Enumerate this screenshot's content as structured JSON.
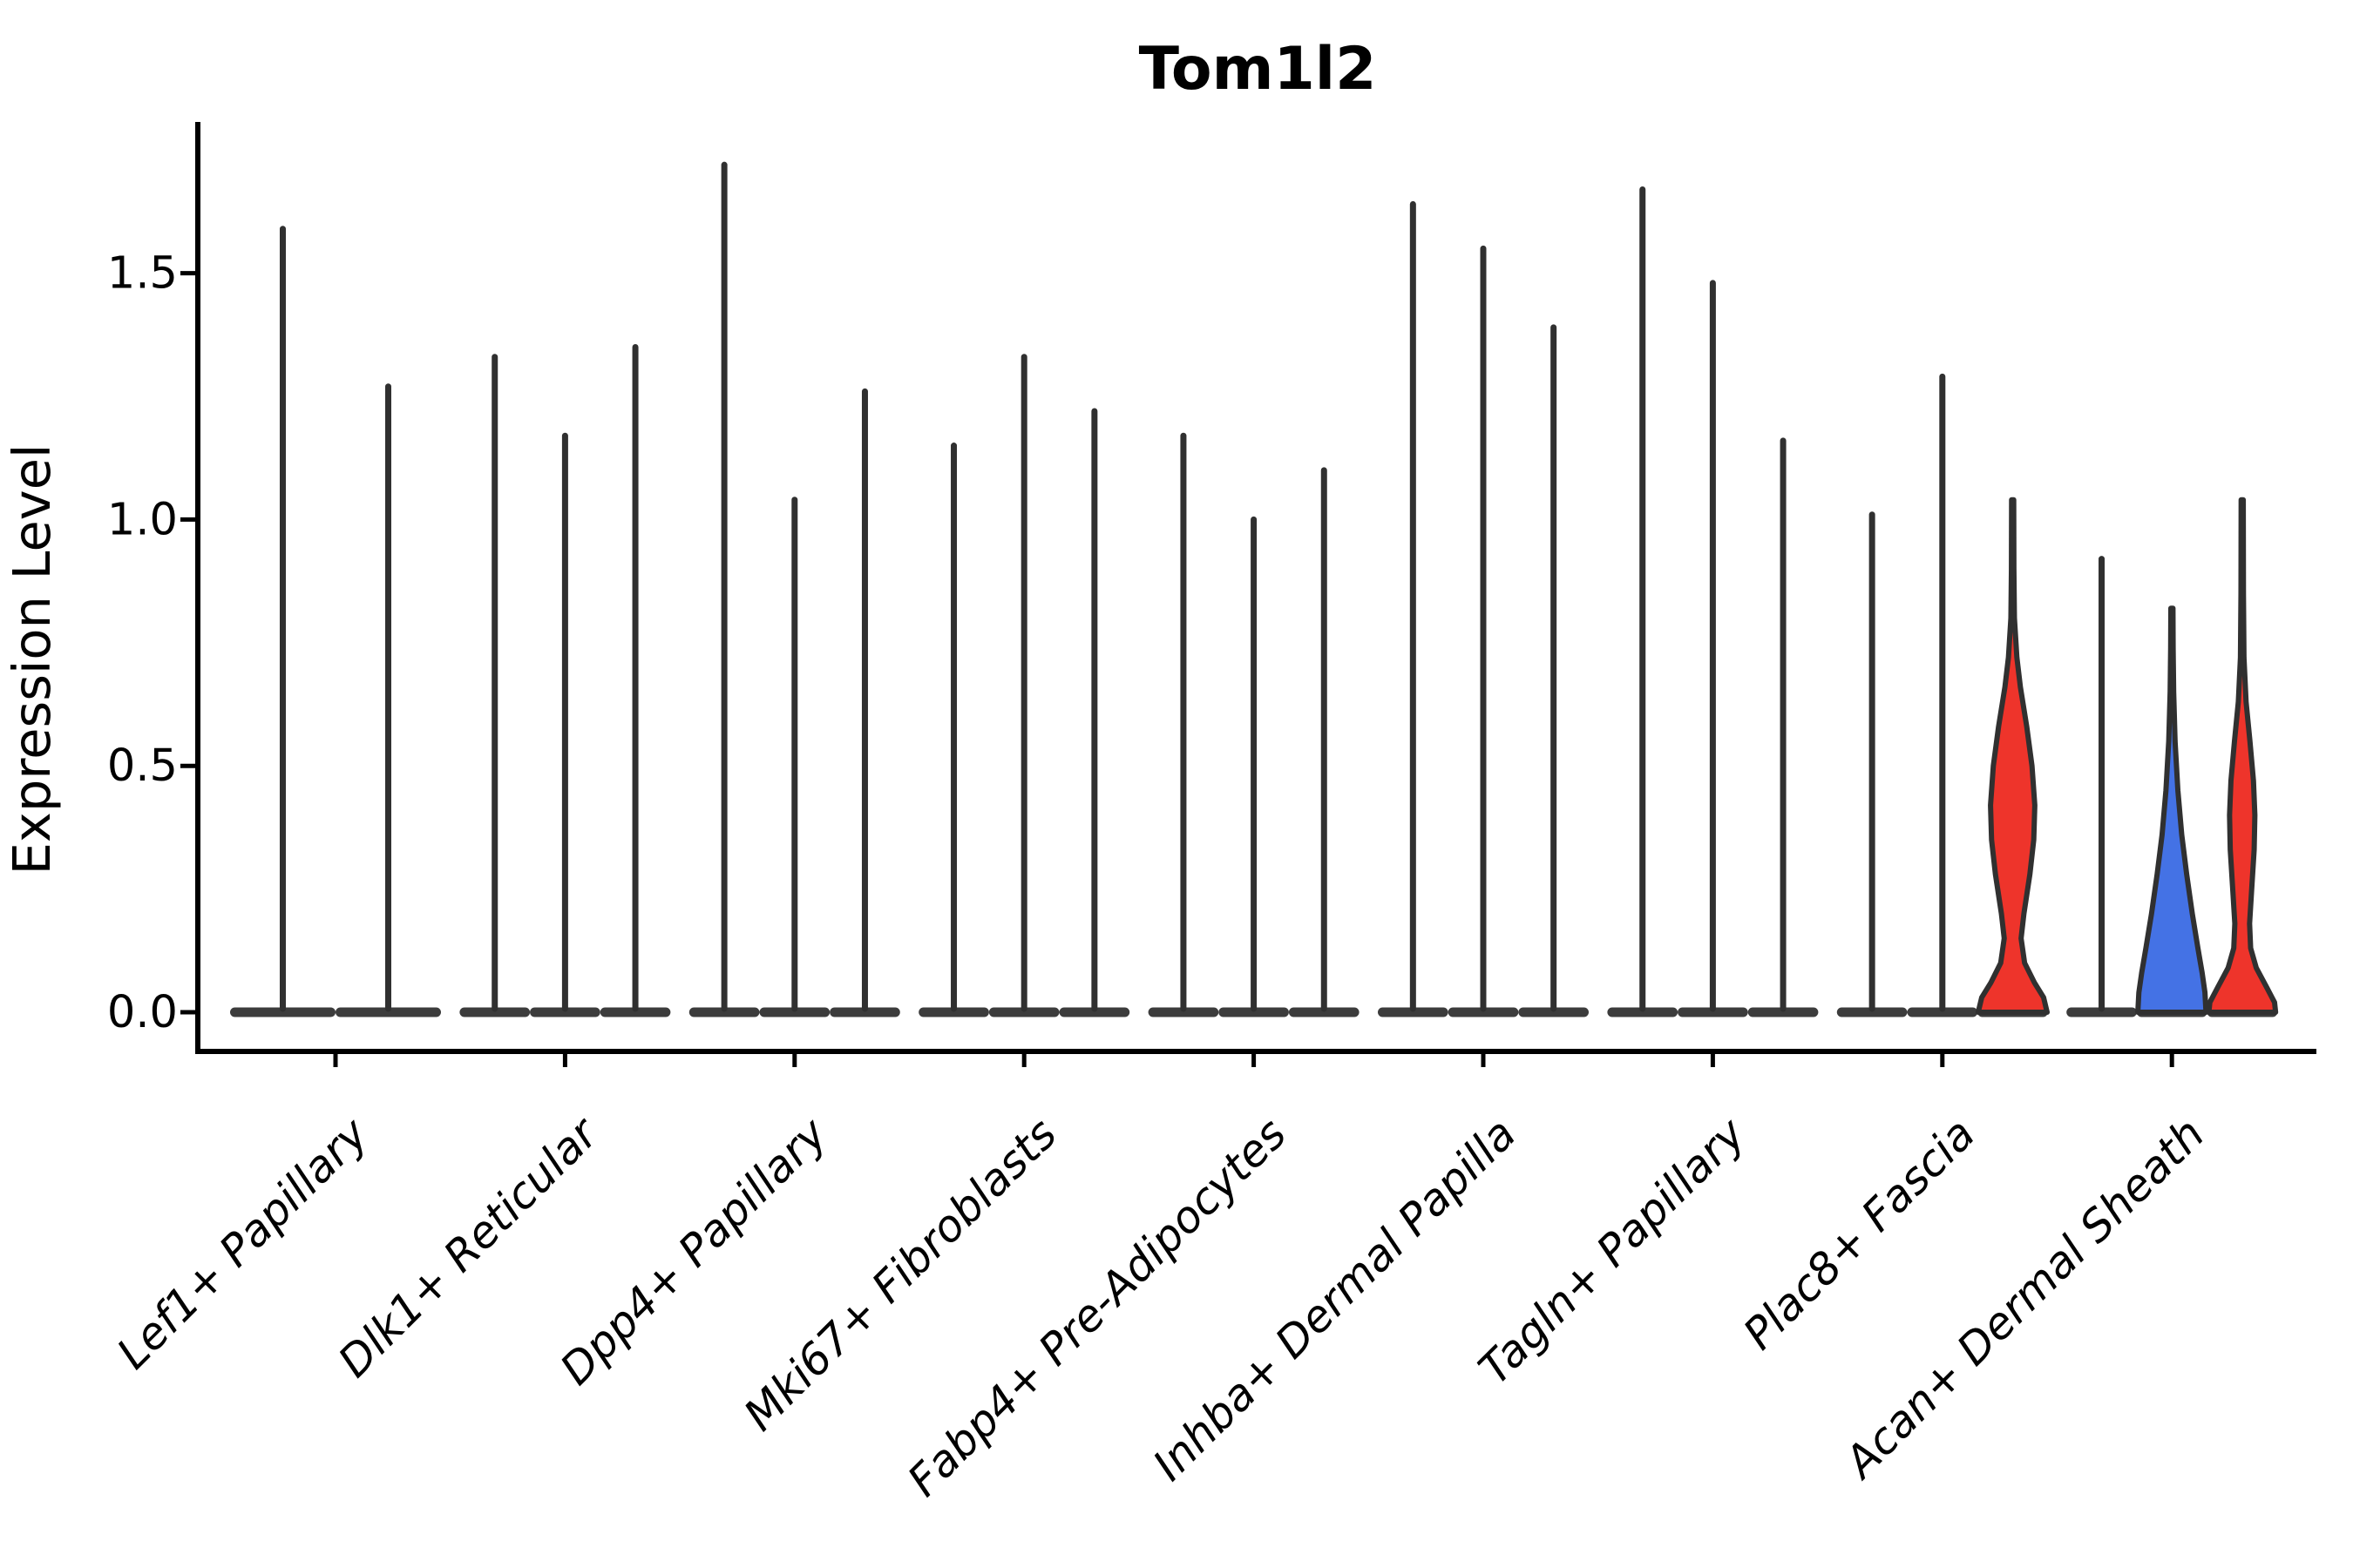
{
  "chart_data": {
    "type": "violin",
    "title": "Tom1l2",
    "ylabel": "Expression Level",
    "xlabel": "",
    "yticks": [
      0.0,
      0.5,
      1.0,
      1.5
    ],
    "ylim": [
      -0.08,
      1.8
    ],
    "grid": false,
    "legend": "none",
    "colors": {
      "red_fill": "#ee342b",
      "blue_fill": "#4472e5",
      "violin_outline": "#303030",
      "baseline_strip": "#3c3c3c",
      "axis": "#000000"
    },
    "groups": [
      {
        "category": "Lef1+ Papillary",
        "violins": [
          {
            "max": 1.59,
            "shape": "spike"
          },
          {
            "max": 1.27,
            "shape": "spike"
          }
        ]
      },
      {
        "category": "Dlk1+ Reticular",
        "violins": [
          {
            "max": 1.33,
            "shape": "spike"
          },
          {
            "max": 1.17,
            "shape": "spike"
          },
          {
            "max": 1.35,
            "shape": "spike"
          }
        ]
      },
      {
        "category": "Dpp4+ Papillary",
        "violins": [
          {
            "max": 1.72,
            "shape": "spike"
          },
          {
            "max": 1.04,
            "shape": "spike"
          },
          {
            "max": 1.26,
            "shape": "spike"
          }
        ]
      },
      {
        "category": "Mki67+ Fibroblasts",
        "violins": [
          {
            "max": 1.15,
            "shape": "spike"
          },
          {
            "max": 1.33,
            "shape": "spike"
          },
          {
            "max": 1.22,
            "shape": "spike"
          }
        ]
      },
      {
        "category": "Fabp4+ Pre-Adipocytes",
        "violins": [
          {
            "max": 1.17,
            "shape": "spike"
          },
          {
            "max": 1.0,
            "shape": "spike"
          },
          {
            "max": 1.1,
            "shape": "spike"
          }
        ]
      },
      {
        "category": "Inhba+ Dermal Papilla",
        "violins": [
          {
            "max": 1.64,
            "shape": "spike"
          },
          {
            "max": 1.55,
            "shape": "spike"
          },
          {
            "max": 1.39,
            "shape": "spike"
          }
        ]
      },
      {
        "category": "Tagln+ Papillary",
        "violins": [
          {
            "max": 1.67,
            "shape": "spike"
          },
          {
            "max": 1.48,
            "shape": "spike"
          },
          {
            "max": 1.16,
            "shape": "spike"
          }
        ]
      },
      {
        "category": "Plac8+ Fascia",
        "violins": [
          {
            "max": 1.01,
            "shape": "spike"
          },
          {
            "max": 1.29,
            "shape": "spike"
          },
          {
            "max": 1.04,
            "shape": "violin",
            "fill": "#ee342b",
            "profile": [
              [
                0,
                0.98
              ],
              [
                0.03,
                0.88
              ],
              [
                0.06,
                0.62
              ],
              [
                0.1,
                0.34
              ],
              [
                0.15,
                0.24
              ],
              [
                0.2,
                0.32
              ],
              [
                0.28,
                0.49
              ],
              [
                0.35,
                0.6
              ],
              [
                0.42,
                0.63
              ],
              [
                0.5,
                0.55
              ],
              [
                0.58,
                0.4
              ],
              [
                0.66,
                0.22
              ],
              [
                0.72,
                0.12
              ],
              [
                0.8,
                0.05
              ],
              [
                0.9,
                0.035
              ],
              [
                1.04,
                0.03
              ]
            ]
          }
        ]
      },
      {
        "category": "Acan+ Dermal Sheath",
        "violins": [
          {
            "max": 0.92,
            "shape": "spike"
          },
          {
            "max": 0.82,
            "shape": "violin",
            "fill": "#4472e5",
            "profile": [
              [
                0,
                0.97
              ],
              [
                0.04,
                0.94
              ],
              [
                0.08,
                0.86
              ],
              [
                0.13,
                0.74
              ],
              [
                0.2,
                0.58
              ],
              [
                0.28,
                0.42
              ],
              [
                0.36,
                0.28
              ],
              [
                0.45,
                0.17
              ],
              [
                0.55,
                0.09
              ],
              [
                0.65,
                0.05
              ],
              [
                0.74,
                0.035
              ],
              [
                0.82,
                0.03
              ]
            ]
          },
          {
            "max": 1.04,
            "shape": "violin",
            "fill": "#ee342b",
            "profile": [
              [
                0,
                0.95
              ],
              [
                0.02,
                0.92
              ],
              [
                0.05,
                0.7
              ],
              [
                0.09,
                0.4
              ],
              [
                0.13,
                0.24
              ],
              [
                0.18,
                0.21
              ],
              [
                0.25,
                0.27
              ],
              [
                0.33,
                0.34
              ],
              [
                0.4,
                0.36
              ],
              [
                0.47,
                0.32
              ],
              [
                0.55,
                0.22
              ],
              [
                0.63,
                0.11
              ],
              [
                0.72,
                0.05
              ],
              [
                0.85,
                0.035
              ],
              [
                1.04,
                0.03
              ]
            ]
          }
        ]
      }
    ]
  }
}
